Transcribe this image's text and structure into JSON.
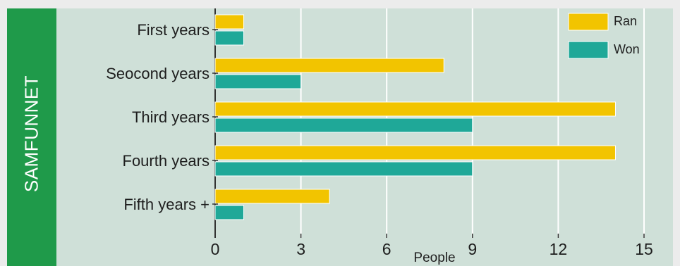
{
  "sidebar": {
    "label": "SAMFUNNET"
  },
  "colors": {
    "ran": "#f2c400",
    "won": "#1fa898",
    "background": "#cfe0d8",
    "band": "#1f9a4a"
  },
  "chart_data": {
    "type": "bar",
    "orientation": "horizontal",
    "categories": [
      "First years",
      "Seocond years",
      "Third years",
      "Fourth years",
      "Fifth years +"
    ],
    "series": [
      {
        "name": "Ran",
        "values": [
          1,
          8,
          14,
          14,
          4
        ]
      },
      {
        "name": "Won",
        "values": [
          1,
          3,
          9,
          9,
          1
        ]
      }
    ],
    "xlabel": "People",
    "ylabel": "",
    "xlim": [
      0,
      15
    ],
    "xticks": [
      "0",
      "3",
      "6",
      "9",
      "12",
      "15"
    ],
    "grid": true,
    "legend": "top-right"
  }
}
